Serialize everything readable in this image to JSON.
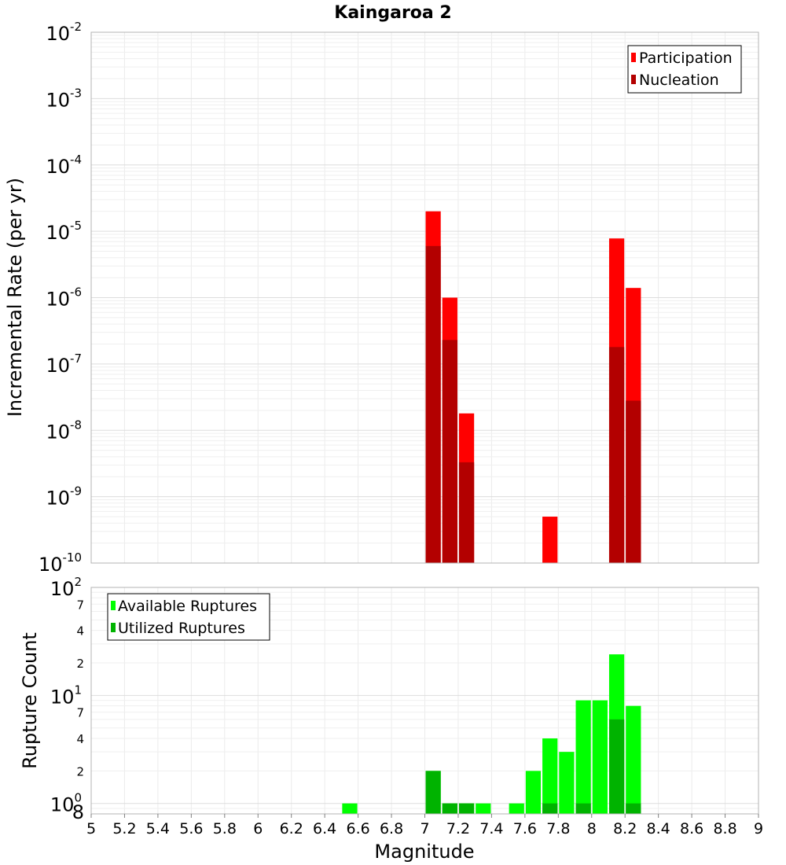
{
  "chart_data": [
    {
      "type": "bar",
      "title": "Kaingaroa 2",
      "ylabel": "Incremental Rate (per yr)",
      "xlabel": "",
      "xlim": [
        5,
        9
      ],
      "ylim": [
        1e-10,
        0.01
      ],
      "yscale": "log",
      "grid": true,
      "legend_position": "top-right",
      "bin_width": 0.1,
      "ytick_labels": [
        {
          "base": "10",
          "exp": "-2"
        },
        {
          "base": "10",
          "exp": "-3"
        },
        {
          "base": "10",
          "exp": "-4"
        },
        {
          "base": "10",
          "exp": "-5"
        },
        {
          "base": "10",
          "exp": "-6"
        },
        {
          "base": "10",
          "exp": "-7"
        },
        {
          "base": "10",
          "exp": "-8"
        },
        {
          "base": "10",
          "exp": "-9"
        },
        {
          "base": "10",
          "exp": "-10"
        }
      ],
      "series": [
        {
          "name": "Participation",
          "color": "#ff0000",
          "x": [
            7.05,
            7.15,
            7.25,
            7.75,
            8.15,
            8.25
          ],
          "values": [
            2e-05,
            1e-06,
            1.8e-08,
            5e-10,
            7.8e-06,
            1.4e-06
          ]
        },
        {
          "name": "Nucleation",
          "color": "#b30000",
          "x": [
            7.05,
            7.15,
            7.25,
            8.15,
            8.25
          ],
          "values": [
            6e-06,
            2.3e-07,
            3.3e-09,
            1.8e-07,
            2.8e-08
          ]
        }
      ]
    },
    {
      "type": "bar",
      "title": "",
      "ylabel": "Rupture Count",
      "xlabel": "Magnitude",
      "xlim": [
        5,
        9
      ],
      "ylim": [
        0.8,
        100
      ],
      "yscale": "log",
      "grid": true,
      "legend_position": "top-left",
      "bin_width": 0.1,
      "xtick_labels": [
        "5",
        "5.2",
        "5.4",
        "5.6",
        "5.8",
        "6",
        "6.2",
        "6.4",
        "6.6",
        "6.8",
        "7",
        "7.2",
        "7.4",
        "7.6",
        "7.8",
        "8",
        "8.2",
        "8.4",
        "8.6",
        "8.8",
        "9"
      ],
      "ytick_labels": [
        {
          "base": "10",
          "exp": "2"
        },
        {
          "base": "7",
          "exp": ""
        },
        {
          "base": "4",
          "exp": ""
        },
        {
          "base": "2",
          "exp": ""
        },
        {
          "base": "10",
          "exp": "1"
        },
        {
          "base": "7",
          "exp": ""
        },
        {
          "base": "4",
          "exp": ""
        },
        {
          "base": "2",
          "exp": ""
        },
        {
          "base": "10",
          "exp": "0"
        },
        {
          "base": "8",
          "exp": ""
        }
      ],
      "series": [
        {
          "name": "Available Ruptures",
          "color": "#00ff00",
          "x": [
            6.55,
            7.05,
            7.15,
            7.25,
            7.35,
            7.55,
            7.65,
            7.75,
            7.85,
            7.95,
            8.05,
            8.15,
            8.25
          ],
          "values": [
            1,
            2,
            1,
            1,
            1,
            1,
            2,
            4,
            3,
            9,
            9,
            24,
            8
          ]
        },
        {
          "name": "Utilized Ruptures",
          "color": "#00b300",
          "x": [
            7.05,
            7.15,
            7.25,
            7.75,
            7.95,
            8.15,
            8.25
          ],
          "values": [
            2,
            1,
            1,
            1,
            1,
            6,
            1
          ]
        }
      ]
    }
  ]
}
